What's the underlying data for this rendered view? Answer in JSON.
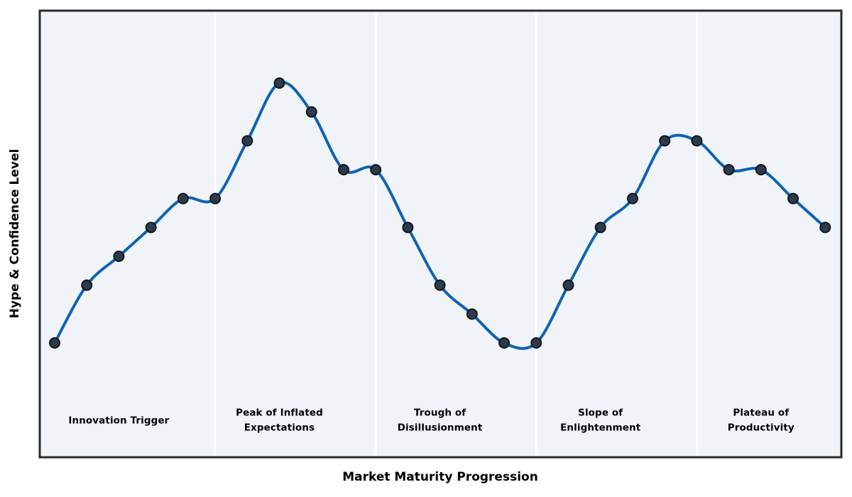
{
  "chart_data": {
    "type": "line",
    "title": "",
    "xlabel": "Market Maturity Progression",
    "ylabel": "Hype & Confidence Level",
    "x": [
      0,
      1,
      2,
      3,
      4,
      5,
      6,
      7,
      8,
      9,
      10,
      11,
      12,
      13,
      14,
      15,
      16,
      17,
      18,
      19,
      20,
      21,
      22,
      23,
      24
    ],
    "values": [
      10,
      30,
      40,
      50,
      60,
      60,
      80,
      100,
      90,
      70,
      70,
      50,
      30,
      20,
      10,
      10,
      30,
      50,
      60,
      80,
      80,
      70,
      70,
      60,
      50
    ],
    "ylim_estimate": [
      -30,
      125
    ],
    "grid": false,
    "legend": null,
    "smooth_curve": true,
    "marker": "circle",
    "phases": [
      {
        "label": "Innovation Trigger",
        "start_index": 0,
        "end_index": 4
      },
      {
        "label": "Peak of Inflated\nExpectations",
        "start_index": 5,
        "end_index": 9
      },
      {
        "label": "Trough of\nDisillusionment",
        "start_index": 10,
        "end_index": 14
      },
      {
        "label": "Slope of\nEnlightenment",
        "start_index": 15,
        "end_index": 19
      },
      {
        "label": "Plateau of\nProductivity",
        "start_index": 20,
        "end_index": 24
      }
    ],
    "phase_divider_positions_x": [
      5,
      10,
      15,
      20
    ],
    "colors": {
      "line": "#1061b5",
      "marker_fill": "#2c3a4a",
      "marker_edge": "#10161d",
      "plot_background": "#f0f4f8",
      "figure_background": "#ffffff",
      "border": "#2b2b2b",
      "divider": "#ffffff",
      "text": "#000000"
    }
  }
}
